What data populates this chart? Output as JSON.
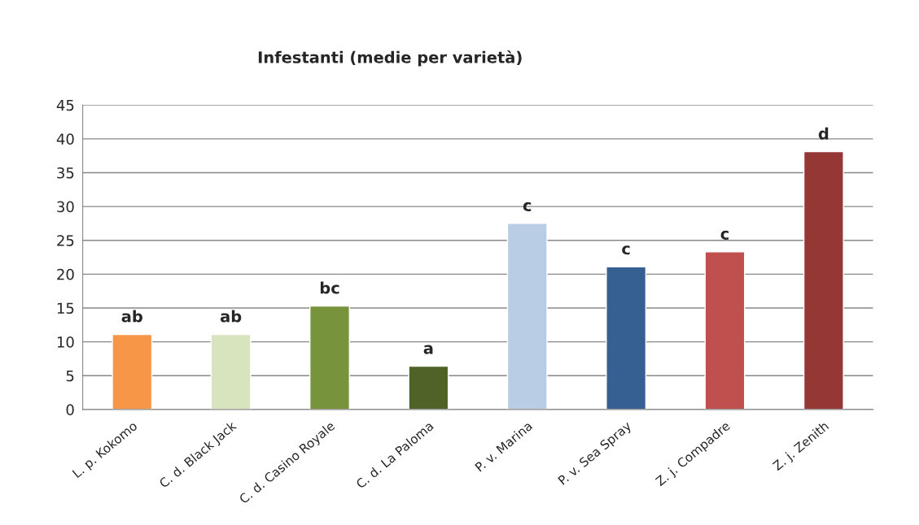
{
  "chart_data": {
    "type": "bar",
    "title": "Infestanti (medie per varietà)",
    "categories": [
      "L. p. Kokomo",
      "C. d. Black Jack",
      "C. d. Casino Royale",
      "C. d. La Paloma",
      "P. v. Marina",
      "P. v. Sea Spray",
      "Z. j. Compadre",
      "Z. j. Zenith"
    ],
    "values": [
      11.1,
      11.1,
      15.3,
      6.4,
      27.5,
      21.1,
      23.3,
      38.1
    ],
    "colors": [
      "#f79646",
      "#d7e4bd",
      "#77933c",
      "#4f6228",
      "#b9cde5",
      "#376092",
      "#c0504d",
      "#953735"
    ],
    "ylim": [
      0,
      45
    ],
    "yticks": [
      0,
      5,
      10,
      15,
      20,
      25,
      30,
      35,
      40,
      45
    ],
    "grid": "y",
    "legend": false,
    "annotations": [
      {
        "text": "ab",
        "x": "L. p. Kokomo",
        "y": 11.1
      },
      {
        "text": "ab",
        "x": "C. d. Black Jack",
        "y": 11.1
      },
      {
        "text": "bc",
        "x": "C. d. Casino Royale",
        "y": 15.3
      },
      {
        "text": "a",
        "x": "C. d. La Paloma",
        "y": 6.4
      },
      {
        "text": "c",
        "x": "P. v. Marina",
        "y": 27.5
      },
      {
        "text": "c",
        "x": "P. v. Sea Spray",
        "y": 21.1
      },
      {
        "text": "c",
        "x": "Z. j. Compadre",
        "y": 23.3
      },
      {
        "text": "d",
        "x": "Z. j. Zenith",
        "y": 38.1
      }
    ]
  }
}
